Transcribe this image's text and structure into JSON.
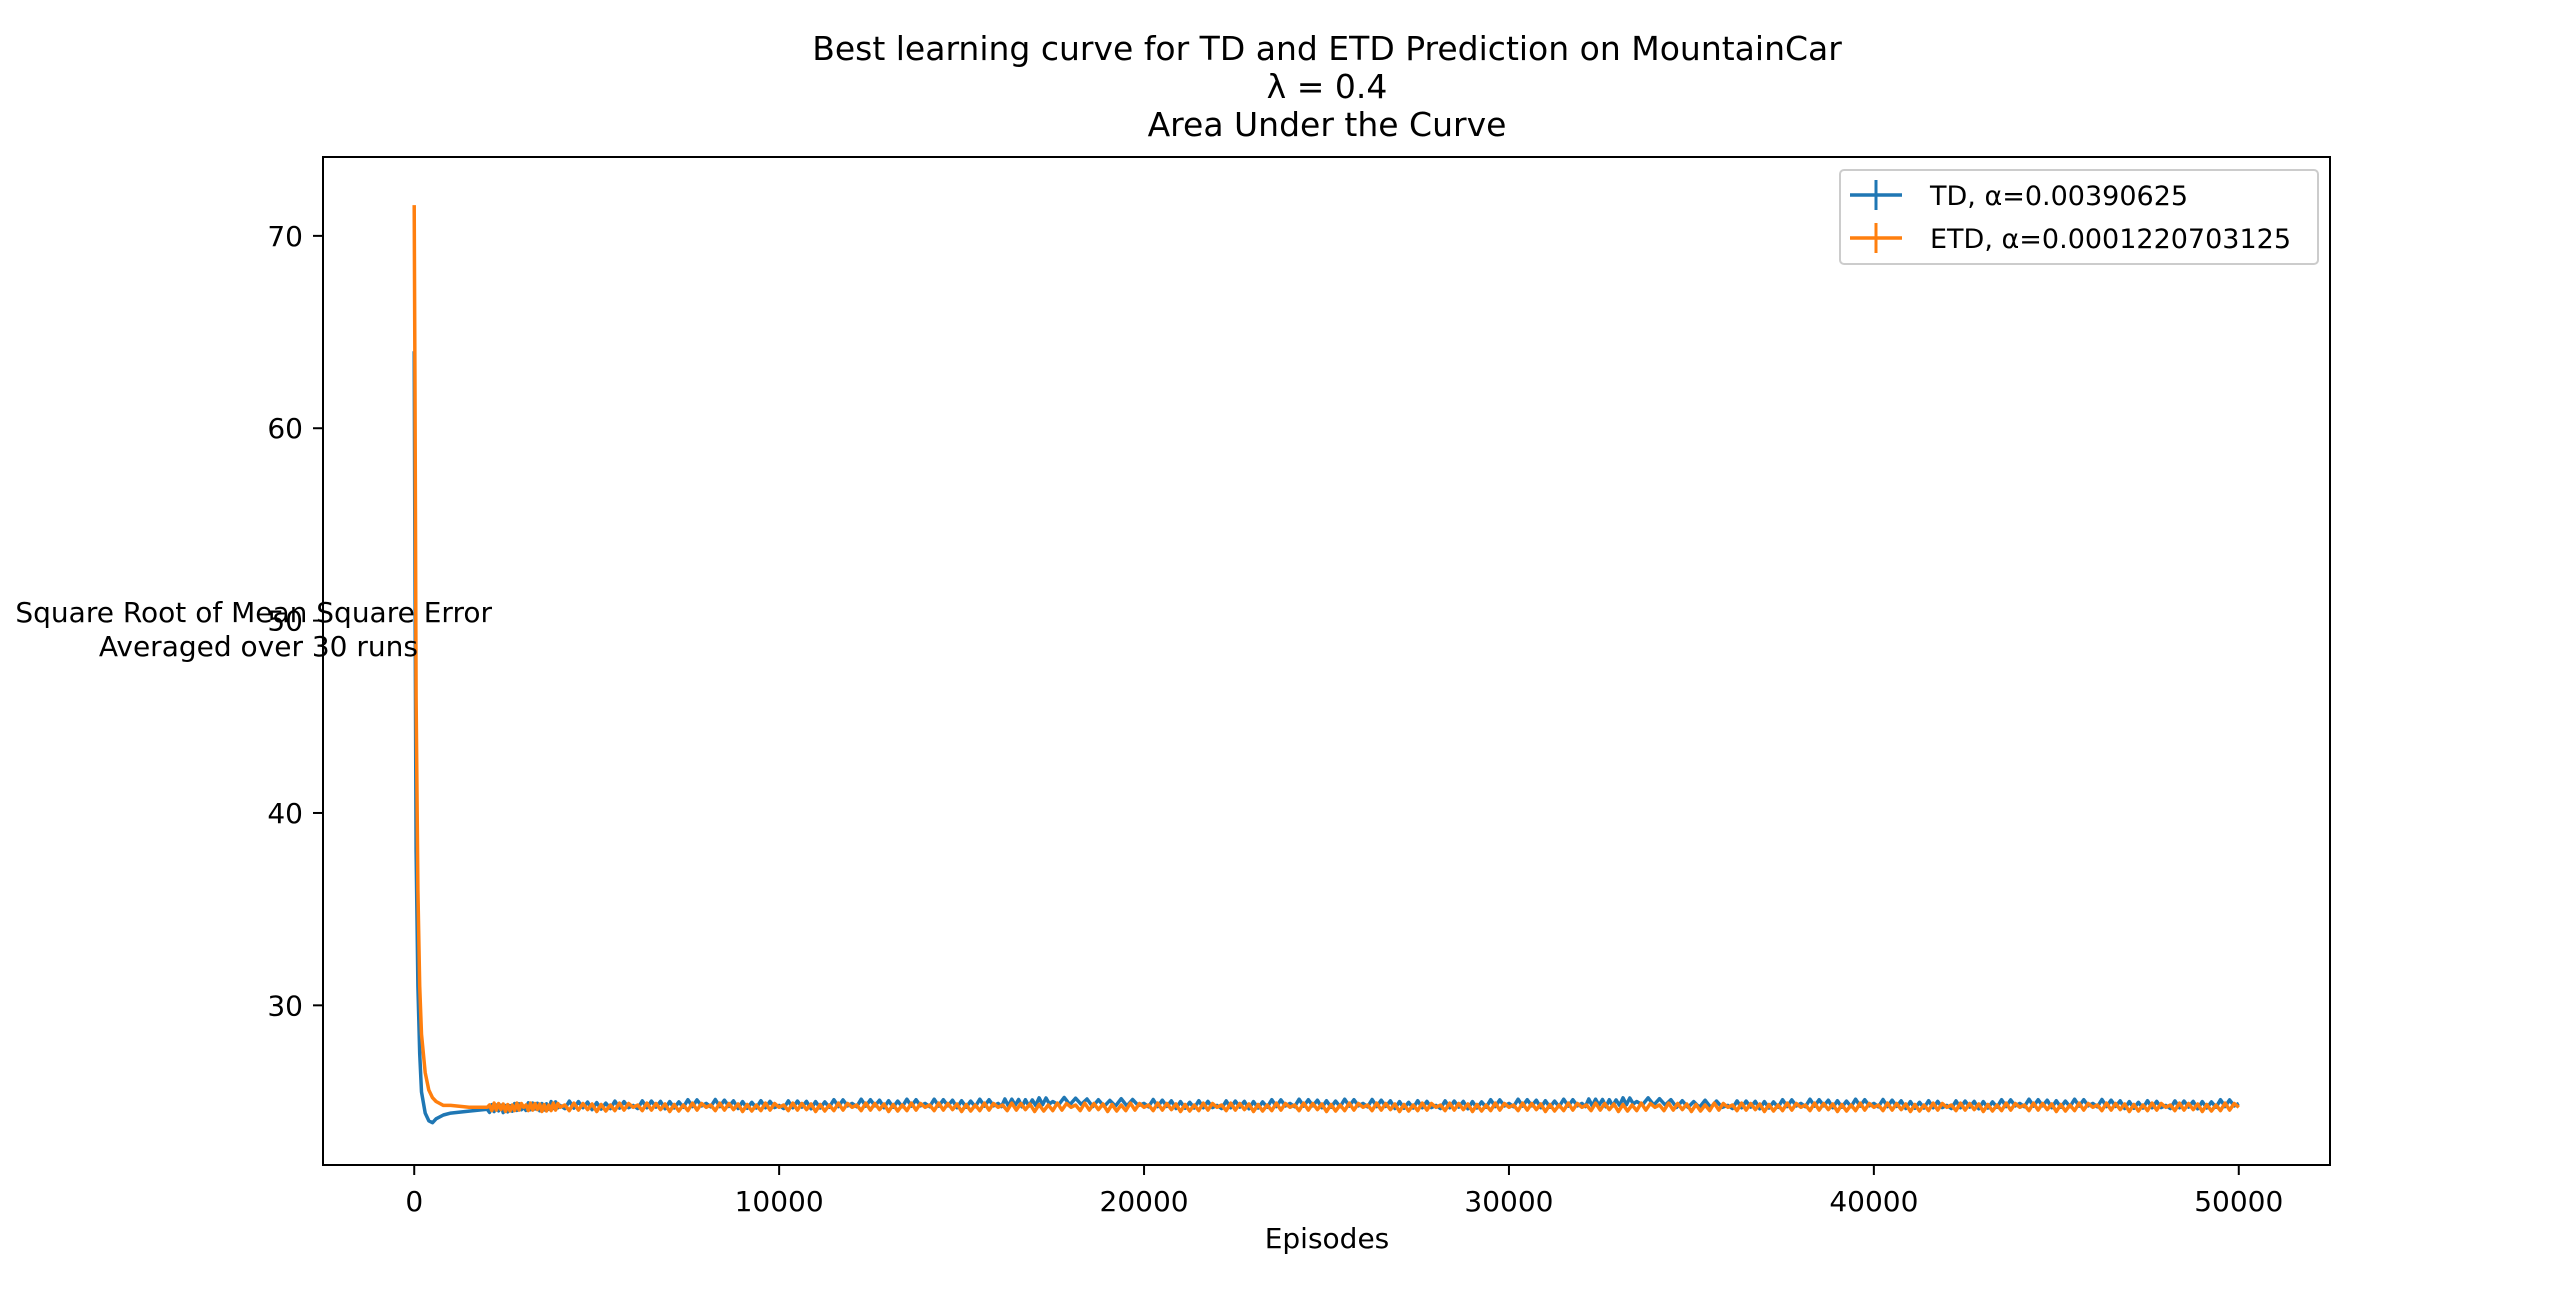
{
  "chart_data": {
    "type": "line",
    "title": [
      "Best learning curve for TD and ETD Prediction on MountainCar",
      "λ = 0.4",
      "Area Under the Curve"
    ],
    "xlabel": "Episodes",
    "ylabel": [
      "Square Root of Mean Square Error",
      "Averaged over 30 runs"
    ],
    "xlim": [
      -2500,
      52500
    ],
    "ylim": [
      21.7,
      74.1
    ],
    "xticks": [
      0,
      10000,
      20000,
      30000,
      40000,
      50000
    ],
    "xtick_labels": [
      "0",
      "10000",
      "20000",
      "30000",
      "40000",
      "50000"
    ],
    "yticks": [
      30,
      40,
      50,
      60,
      70
    ],
    "ytick_labels": [
      "30",
      "40",
      "50",
      "60",
      "70"
    ],
    "grid": false,
    "legend_position": "top-right",
    "series": [
      {
        "name": "TD, α=0.00390625",
        "color": "#1f77b4",
        "x": [
          0,
          20,
          50,
          100,
          150,
          200,
          300,
          400,
          500,
          600,
          800,
          1000,
          1500,
          2000,
          3000,
          4000,
          6000,
          8000,
          10000,
          12000,
          14000,
          16000,
          17500,
          20000,
          22000,
          24000,
          26000,
          28000,
          30000,
          32000,
          33500,
          36000,
          38000,
          40000,
          42000,
          44000,
          46000,
          48000,
          50000
        ],
        "values": [
          64.0,
          52.0,
          38.0,
          31.0,
          27.5,
          25.5,
          24.4,
          24.0,
          23.9,
          24.1,
          24.3,
          24.4,
          24.5,
          24.6,
          24.7,
          24.8,
          24.8,
          24.9,
          24.8,
          24.9,
          24.9,
          24.9,
          25.0,
          24.9,
          24.8,
          24.9,
          24.9,
          24.8,
          24.9,
          24.9,
          25.0,
          24.8,
          24.9,
          24.9,
          24.8,
          24.9,
          24.9,
          24.8,
          24.9
        ]
      },
      {
        "name": "ETD, α=0.0001220703125",
        "color": "#ff7f0e",
        "x": [
          0,
          20,
          50,
          100,
          150,
          200,
          300,
          400,
          500,
          600,
          800,
          1000,
          1500,
          2000,
          3000,
          4000,
          6000,
          8000,
          10000,
          12000,
          14000,
          16000,
          18000,
          20000,
          22000,
          24000,
          26000,
          28000,
          30000,
          32000,
          34000,
          36000,
          38000,
          40000,
          42000,
          44000,
          46000,
          48000,
          50000
        ],
        "values": [
          71.6,
          62.0,
          46.0,
          36.0,
          31.0,
          28.5,
          26.5,
          25.6,
          25.2,
          25.0,
          24.8,
          24.8,
          24.7,
          24.7,
          24.7,
          24.7,
          24.7,
          24.7,
          24.7,
          24.7,
          24.7,
          24.7,
          24.7,
          24.7,
          24.7,
          24.7,
          24.7,
          24.7,
          24.7,
          24.7,
          24.7,
          24.7,
          24.7,
          24.7,
          24.7,
          24.7,
          24.7,
          24.7,
          24.7
        ]
      }
    ]
  }
}
